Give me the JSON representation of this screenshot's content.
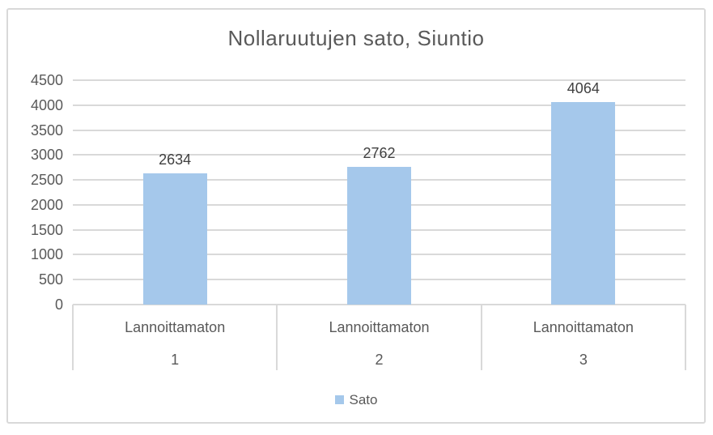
{
  "chart": {
    "colors": {
      "bar_fill": "#A5C8EB",
      "gridline": "#D9D9D9",
      "frame_border": "#D9D9D9",
      "title_text": "#595959",
      "axis_text": "#595959",
      "data_label_text": "#404040"
    }
  },
  "chart_data": {
    "type": "bar",
    "title": "Nollaruutujen sato, Siuntio",
    "categories": [
      "Lannoittamaton 1",
      "Lannoittamaton 2",
      "Lannoittamaton 3"
    ],
    "category_label_lines": [
      [
        "Lannoittamaton",
        "1"
      ],
      [
        "Lannoittamaton",
        "2"
      ],
      [
        "Lannoittamaton",
        "3"
      ]
    ],
    "series": [
      {
        "name": "Sato",
        "values": [
          2634,
          2762,
          4064
        ],
        "color": "#A5C8EB"
      }
    ],
    "data_labels": [
      "2634",
      "2762",
      "4064"
    ],
    "xlabel": "",
    "ylabel": "",
    "ylim": [
      0,
      4500
    ],
    "yticks": [
      0,
      500,
      1000,
      1500,
      2000,
      2500,
      3000,
      3500,
      4000,
      4500
    ],
    "grid": true,
    "legend": {
      "position": "bottom",
      "entries": [
        {
          "label": "Sato",
          "color": "#A5C8EB"
        }
      ]
    }
  }
}
